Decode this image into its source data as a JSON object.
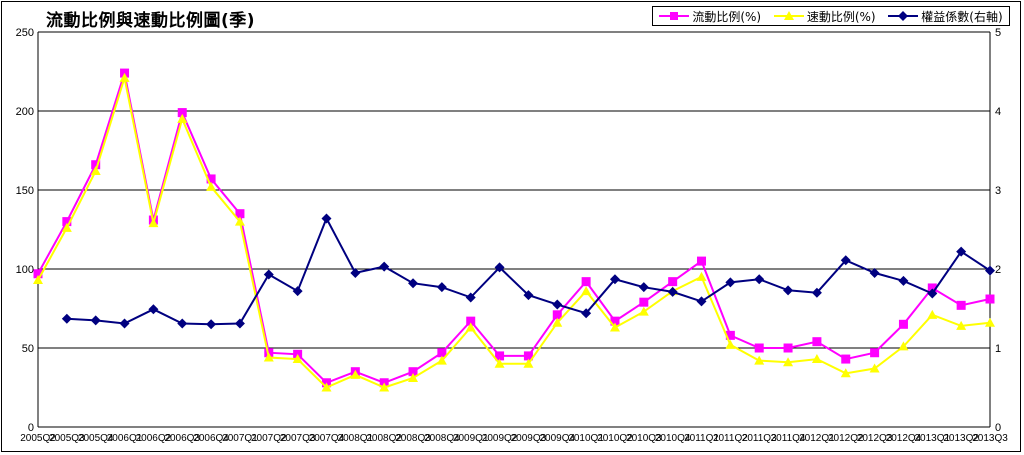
{
  "chart_data": {
    "type": "line",
    "title": "流動比例與速動比例圖(季)",
    "categories": [
      "2005Q2",
      "2005Q3",
      "2005Q4",
      "2006Q1",
      "2006Q2",
      "2006Q3",
      "2006Q4",
      "2007Q1",
      "2007Q2",
      "2007Q3",
      "2007Q4",
      "2008Q1",
      "2008Q2",
      "2008Q3",
      "2008Q4",
      "2009Q1",
      "2009Q2",
      "2009Q3",
      "2009Q4",
      "2010Q1",
      "2010Q2",
      "2010Q3",
      "2010Q4",
      "2011Q1",
      "2011Q2",
      "2011Q3",
      "2011Q4",
      "2012Q1",
      "2012Q2",
      "2012Q3",
      "2012Q4",
      "2013Q1",
      "2013Q2",
      "2013Q3"
    ],
    "ylim": [
      0,
      250
    ],
    "yticks": [
      0,
      50,
      100,
      150,
      200,
      250
    ],
    "y2lim": [
      0,
      5
    ],
    "y2ticks": [
      0,
      1,
      2,
      3,
      4,
      5
    ],
    "grid": true,
    "legend_position": "top-right",
    "series": [
      {
        "name": "流動比例(%)",
        "axis": "left",
        "color": "#ff00ff",
        "marker": "square",
        "values": [
          97,
          130,
          166,
          224,
          131,
          199,
          157,
          135,
          47,
          46,
          28,
          35,
          28,
          35,
          47,
          67,
          45,
          45,
          71,
          92,
          67,
          79,
          92,
          105,
          58,
          50,
          50,
          54,
          43,
          47,
          65,
          88,
          77,
          81
        ]
      },
      {
        "name": "速動比例(%)",
        "axis": "left",
        "color": "#ffff00",
        "marker": "triangle",
        "values": [
          93,
          126,
          162,
          221,
          129,
          195,
          152,
          130,
          44,
          43,
          25,
          33,
          25,
          31,
          42,
          63,
          40,
          40,
          66,
          86,
          63,
          73,
          86,
          95,
          52,
          42,
          41,
          43,
          34,
          37,
          51,
          71,
          64,
          66
        ]
      },
      {
        "name": "權益係數(右軸)",
        "axis": "right",
        "color": "#000080",
        "marker": "diamond",
        "values": [
          null,
          1.37,
          1.35,
          1.31,
          1.49,
          1.31,
          1.3,
          1.31,
          1.93,
          1.72,
          2.64,
          1.95,
          2.03,
          1.82,
          1.77,
          1.64,
          2.02,
          1.67,
          1.55,
          1.44,
          1.87,
          1.77,
          1.71,
          1.59,
          1.83,
          1.87,
          1.73,
          1.7,
          2.11,
          1.95,
          1.85,
          1.69,
          2.22,
          1.98
        ]
      }
    ]
  }
}
